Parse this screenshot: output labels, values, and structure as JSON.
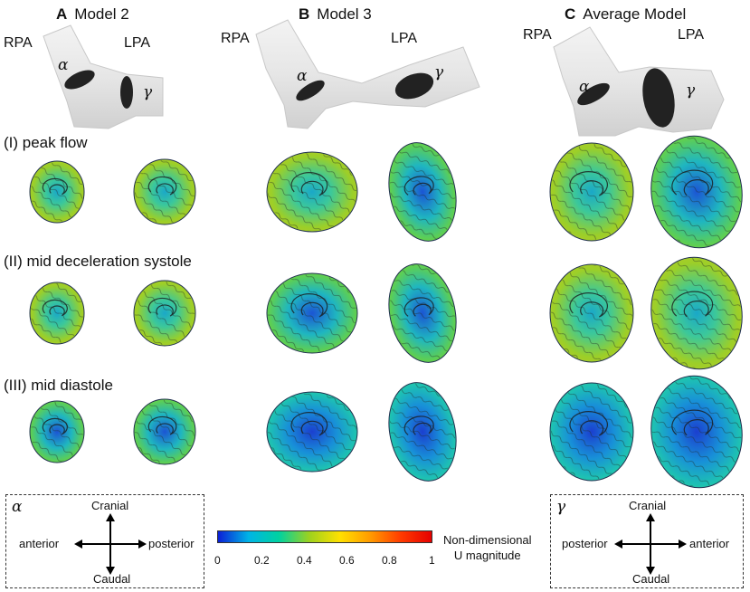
{
  "panels": [
    {
      "letter": "A",
      "title": "Model 2",
      "rpa": "RPA",
      "lpa": "LPA",
      "alpha": "α",
      "gamma": "γ"
    },
    {
      "letter": "B",
      "title": "Model 3",
      "rpa": "RPA",
      "lpa": "LPA",
      "alpha": "α",
      "gamma": "γ"
    },
    {
      "letter": "C",
      "title": "Average Model",
      "rpa": "RPA",
      "lpa": "LPA",
      "alpha": "α",
      "gamma": "γ"
    }
  ],
  "rows": [
    {
      "label": "(I) peak flow"
    },
    {
      "label": "(II) mid deceleration systole"
    },
    {
      "label": "(III) mid diastole"
    }
  ],
  "legend_alpha": {
    "symbol": "α",
    "up": "Cranial",
    "down": "Caudal",
    "left": "anterior",
    "right": "posterior"
  },
  "legend_gamma": {
    "symbol": "γ",
    "up": "Cranial",
    "down": "Caudal",
    "left": "posterior",
    "right": "anterior"
  },
  "colorbar": {
    "ticks": [
      "0",
      "0.2",
      "0.4",
      "0.6",
      "0.8",
      "1"
    ],
    "caption_line1": "Non-dimensional",
    "caption_line2": "U magnitude",
    "colors": [
      "#0b1fd6",
      "#00b4e6",
      "#00d2a0",
      "#9ed21e",
      "#ffe000",
      "#ff9a00",
      "#ff3b00",
      "#e60000"
    ]
  }
}
